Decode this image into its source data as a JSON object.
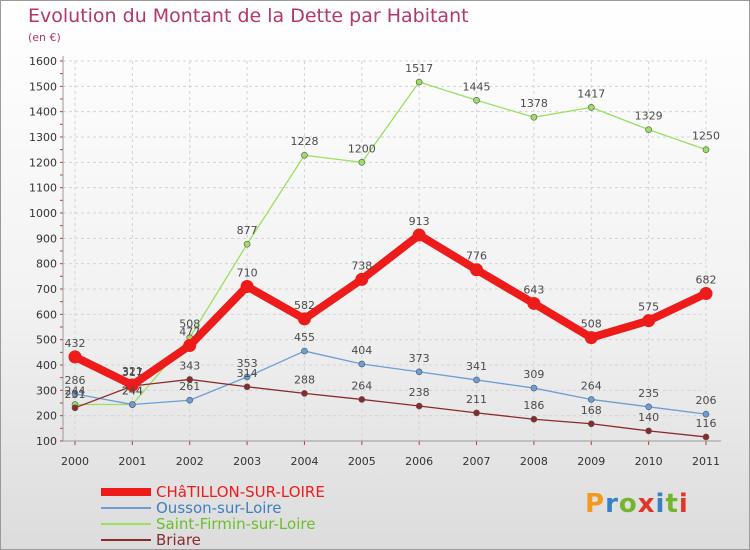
{
  "title": "Evolution du Montant de la Dette par Habitant",
  "unit_label": "(en €)",
  "logo": {
    "text": "Proxiti",
    "colors": [
      "#f29a1f",
      "#3a7fc1",
      "#74b52f",
      "#e0362a",
      "#3a7fc1",
      "#74b52f",
      "#e0362a"
    ]
  },
  "chart_data": {
    "type": "line",
    "title": "Evolution du Montant de la Dette par Habitant",
    "ylabel": "(en €)",
    "x": [
      "2000",
      "2001",
      "2002",
      "2003",
      "2004",
      "2005",
      "2006",
      "2007",
      "2008",
      "2009",
      "2010",
      "2011"
    ],
    "ylim": [
      100,
      1600
    ],
    "yticks": [
      "100",
      "200",
      "300",
      "400",
      "500",
      "600",
      "700",
      "800",
      "900",
      "1000",
      "1100",
      "1200",
      "1300",
      "1400",
      "1500",
      "1600"
    ],
    "grid": true,
    "legend_position": "bottom-left",
    "series": [
      {
        "name": "CHâTILLON-SUR-LOIRE",
        "color": "#ee1b1b",
        "values": [
          432,
          321,
          477,
          710,
          582,
          738,
          913,
          776,
          643,
          508,
          575,
          682
        ],
        "labels": [
          "432",
          "321",
          "477",
          "710",
          "582",
          "738",
          "913",
          "776",
          "643",
          "508",
          "575",
          "682"
        ]
      },
      {
        "name": "Ousson-sur-Loire",
        "color": "#6a9ed6",
        "values": [
          286,
          244,
          261,
          353,
          455,
          404,
          373,
          341,
          309,
          264,
          235,
          206
        ],
        "labels": [
          "286",
          "244",
          "261",
          "353",
          "455",
          "404",
          "373",
          "341",
          "309",
          "264",
          "235",
          "206"
        ]
      },
      {
        "name": "Saint-Firmin-sur-Loire",
        "color": "#9be05f",
        "values": [
          244,
          244,
          508,
          877,
          1228,
          1200,
          1517,
          1445,
          1378,
          1417,
          1329,
          1250
        ],
        "labels": [
          "244",
          "244",
          "508",
          "877",
          "1228",
          "1200",
          "1517",
          "1445",
          "1378",
          "1417",
          "1329",
          "1250"
        ]
      },
      {
        "name": "Briare",
        "color": "#8a2b2b",
        "values": [
          231,
          317,
          343,
          314,
          288,
          264,
          238,
          211,
          186,
          168,
          140,
          116
        ],
        "labels": [
          "231",
          "317",
          "343",
          "314",
          "288",
          "264",
          "238",
          "211",
          "186",
          "168",
          "140",
          "116"
        ]
      }
    ]
  }
}
